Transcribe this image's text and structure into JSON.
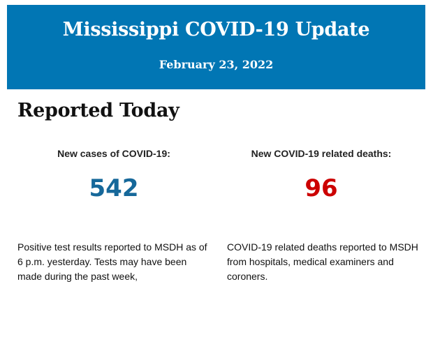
{
  "header": {
    "title": "Mississippi COVID-19 Update",
    "date": "February 23, 2022"
  },
  "section_title": "Reported Today",
  "stats": [
    {
      "label": "New cases of COVID-19:",
      "value": "542",
      "color": "#16689a",
      "description": "Positive test results reported to MSDH as of 6 p.m. yesterday. Tests may have been made during the past week,"
    },
    {
      "label": "New COVID-19 related deaths:",
      "value": "96",
      "color": "#cc0000",
      "description": "COVID-19 related deaths reported to MSDH from hospitals, medical examiners and coroners."
    }
  ],
  "colors": {
    "banner": "#0176b4"
  }
}
